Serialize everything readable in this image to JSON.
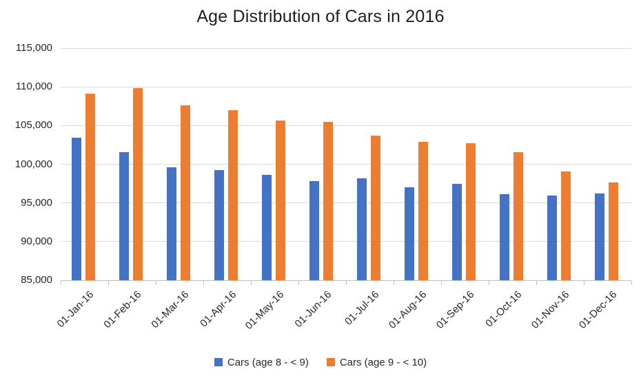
{
  "page": {
    "background": "#FFFFFF"
  },
  "chart_data": {
    "type": "bar",
    "title": "Age Distribution of Cars in 2016",
    "categories": [
      "01-Jan-16",
      "01-Feb-16",
      "01-Mar-16",
      "01-Apr-16",
      "01-May-16",
      "01-Jun-16",
      "01-Jul-16",
      "01-Aug-16",
      "01-Sep-16",
      "01-Oct-16",
      "01-Nov-16",
      "01-Dec-16"
    ],
    "series": [
      {
        "name": "Cars (age 8 - < 9)",
        "color": "#4472C4",
        "values": [
          103450,
          101600,
          99600,
          99200,
          98600,
          97800,
          98150,
          97050,
          97450,
          96100,
          95950,
          96250
        ]
      },
      {
        "name": "Cars (age 9 - < 10)",
        "color": "#ED7D31",
        "values": [
          109100,
          109800,
          107600,
          107000,
          105650,
          105500,
          103700,
          102900,
          102750,
          101600,
          99100,
          97650
        ]
      }
    ],
    "ylim": [
      85000,
      115000
    ],
    "ytick_step": 5000,
    "ytick_labels": [
      "85,000",
      "90,000",
      "95,000",
      "100,000",
      "105,000",
      "110,000",
      "115,000"
    ],
    "xlabel": "",
    "ylabel": "",
    "grid": true,
    "legend_position": "bottom",
    "colors": {
      "gridline": "#D9D9D9",
      "axis_line": "#BFBFBF",
      "text": "#262626",
      "title_text": "#1F1F1F"
    }
  }
}
